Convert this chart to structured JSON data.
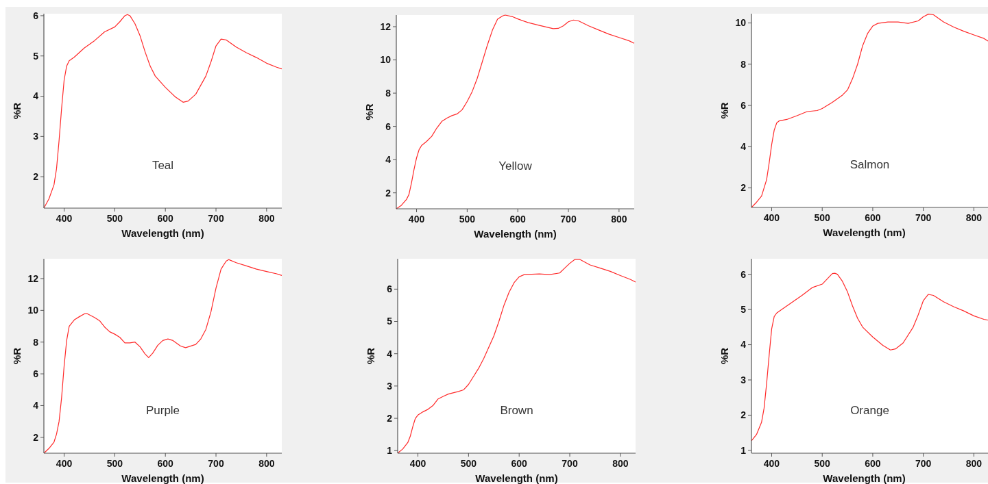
{
  "chart_data": [
    {
      "type": "line",
      "xlabel": "Wavelength (nm)",
      "ylabel": "%R",
      "annotations": [
        "Teal"
      ],
      "xlim": [
        360,
        830
      ],
      "ylim": [
        1.22,
        6.05
      ],
      "xticks": [
        400,
        500,
        600,
        700,
        800
      ],
      "yticks": [
        2,
        3,
        4,
        5,
        6
      ],
      "grid": false,
      "series": [
        {
          "color": "#ff2a2a",
          "x": [
            360,
            370,
            380,
            385,
            390,
            395,
            400,
            405,
            410,
            420,
            440,
            460,
            480,
            500,
            510,
            520,
            525,
            530,
            540,
            550,
            560,
            570,
            580,
            600,
            620,
            635,
            645,
            660,
            680,
            690,
            700,
            710,
            720,
            740,
            760,
            780,
            800,
            820,
            830
          ],
          "values": [
            1.22,
            1.45,
            1.8,
            2.2,
            2.9,
            3.7,
            4.4,
            4.75,
            4.88,
            4.97,
            5.2,
            5.38,
            5.6,
            5.72,
            5.85,
            6.0,
            6.03,
            6.0,
            5.8,
            5.5,
            5.1,
            4.75,
            4.5,
            4.22,
            3.98,
            3.85,
            3.88,
            4.05,
            4.5,
            4.85,
            5.25,
            5.42,
            5.4,
            5.22,
            5.08,
            4.96,
            4.82,
            4.72,
            4.68
          ]
        }
      ]
    },
    {
      "type": "line",
      "xlabel": "Wavelength (nm)",
      "ylabel": "%R",
      "annotations": [
        "Yellow"
      ],
      "xlim": [
        360,
        830
      ],
      "ylim": [
        1.04,
        12.7
      ],
      "xticks": [
        400,
        500,
        600,
        700,
        800
      ],
      "yticks": [
        2,
        4,
        6,
        8,
        10,
        12
      ],
      "grid": false,
      "series": [
        {
          "color": "#ff2a2a",
          "x": [
            360,
            370,
            380,
            385,
            390,
            395,
            400,
            405,
            410,
            420,
            430,
            440,
            450,
            460,
            470,
            480,
            490,
            500,
            510,
            520,
            530,
            540,
            550,
            560,
            570,
            575,
            590,
            600,
            620,
            640,
            660,
            670,
            680,
            690,
            700,
            710,
            720,
            740,
            760,
            780,
            800,
            820,
            830
          ],
          "values": [
            1.04,
            1.25,
            1.6,
            1.9,
            2.6,
            3.4,
            4.1,
            4.6,
            4.85,
            5.1,
            5.4,
            5.9,
            6.3,
            6.5,
            6.65,
            6.75,
            7.0,
            7.5,
            8.1,
            8.9,
            9.9,
            10.9,
            11.8,
            12.45,
            12.65,
            12.7,
            12.6,
            12.47,
            12.25,
            12.1,
            11.95,
            11.88,
            11.9,
            12.05,
            12.3,
            12.4,
            12.35,
            12.05,
            11.8,
            11.55,
            11.35,
            11.15,
            11.0
          ]
        }
      ]
    },
    {
      "type": "line",
      "xlabel": "Wavelength (nm)",
      "ylabel": "%R",
      "annotations": [
        "Salmon"
      ],
      "xlim": [
        360,
        828
      ],
      "ylim": [
        1.05,
        10.45
      ],
      "xticks": [
        400,
        500,
        600,
        700,
        800
      ],
      "yticks": [
        2,
        4,
        6,
        8,
        10
      ],
      "grid": false,
      "series": [
        {
          "color": "#ff2a2a",
          "x": [
            360,
            370,
            380,
            390,
            395,
            400,
            405,
            410,
            415,
            430,
            450,
            470,
            490,
            500,
            520,
            540,
            550,
            560,
            570,
            580,
            590,
            600,
            610,
            630,
            650,
            670,
            690,
            700,
            710,
            720,
            740,
            760,
            780,
            800,
            820,
            828
          ],
          "values": [
            1.05,
            1.3,
            1.6,
            2.4,
            3.2,
            4.1,
            4.8,
            5.15,
            5.25,
            5.32,
            5.5,
            5.7,
            5.75,
            5.85,
            6.15,
            6.5,
            6.75,
            7.3,
            8.0,
            8.9,
            9.5,
            9.85,
            9.98,
            10.05,
            10.05,
            9.98,
            10.1,
            10.3,
            10.43,
            10.4,
            10.05,
            9.8,
            9.6,
            9.42,
            9.25,
            9.12
          ]
        }
      ]
    },
    {
      "type": "line",
      "xlabel": "Wavelength (nm)",
      "ylabel": "%R",
      "annotations": [
        "Purple"
      ],
      "xlim": [
        360,
        830
      ],
      "ylim": [
        1.0,
        13.25
      ],
      "xticks": [
        400,
        500,
        600,
        700,
        800
      ],
      "yticks": [
        2,
        4,
        6,
        8,
        10,
        12
      ],
      "grid": false,
      "series": [
        {
          "color": "#ff2a2a",
          "x": [
            360,
            370,
            380,
            385,
            390,
            395,
            400,
            405,
            410,
            420,
            430,
            440,
            445,
            460,
            470,
            480,
            490,
            500,
            510,
            520,
            530,
            540,
            550,
            560,
            567,
            575,
            585,
            595,
            605,
            615,
            630,
            640,
            660,
            670,
            680,
            690,
            700,
            710,
            720,
            725,
            740,
            760,
            780,
            800,
            820,
            830
          ],
          "values": [
            1.0,
            1.3,
            1.7,
            2.2,
            3.0,
            4.5,
            6.5,
            8.1,
            9.0,
            9.4,
            9.6,
            9.78,
            9.8,
            9.55,
            9.35,
            8.95,
            8.65,
            8.5,
            8.3,
            7.95,
            7.95,
            8.0,
            7.7,
            7.25,
            7.02,
            7.3,
            7.8,
            8.1,
            8.2,
            8.1,
            7.75,
            7.65,
            7.85,
            8.2,
            8.8,
            9.9,
            11.4,
            12.6,
            13.1,
            13.2,
            13.0,
            12.8,
            12.6,
            12.45,
            12.3,
            12.2
          ]
        }
      ]
    },
    {
      "type": "line",
      "xlabel": "Wavelength (nm)",
      "ylabel": "%R",
      "annotations": [
        "Brown"
      ],
      "xlim": [
        360,
        830
      ],
      "ylim": [
        0.92,
        6.94
      ],
      "xticks": [
        400,
        500,
        600,
        700,
        800
      ],
      "yticks": [
        1,
        2,
        3,
        4,
        5,
        6
      ],
      "grid": false,
      "series": [
        {
          "color": "#ff2a2a",
          "x": [
            360,
            370,
            380,
            385,
            390,
            395,
            400,
            410,
            420,
            430,
            440,
            450,
            460,
            480,
            490,
            500,
            510,
            520,
            530,
            540,
            550,
            560,
            570,
            580,
            590,
            600,
            610,
            640,
            660,
            680,
            690,
            700,
            710,
            720,
            740,
            760,
            780,
            800,
            820,
            830
          ],
          "values": [
            0.92,
            1.05,
            1.25,
            1.45,
            1.75,
            2.0,
            2.1,
            2.2,
            2.28,
            2.4,
            2.6,
            2.68,
            2.75,
            2.83,
            2.88,
            3.05,
            3.3,
            3.55,
            3.85,
            4.2,
            4.55,
            5.0,
            5.5,
            5.9,
            6.2,
            6.38,
            6.45,
            6.47,
            6.45,
            6.5,
            6.65,
            6.8,
            6.92,
            6.92,
            6.75,
            6.65,
            6.55,
            6.42,
            6.3,
            6.22
          ]
        }
      ]
    },
    {
      "type": "line",
      "xlabel": "Wavelength (nm)",
      "ylabel": "%R",
      "annotations": [
        "Orange"
      ],
      "xlim": [
        360,
        828
      ],
      "ylim": [
        0.92,
        6.44
      ],
      "xticks": [
        400,
        500,
        600,
        700,
        800
      ],
      "yticks": [
        1,
        2,
        3,
        4,
        5,
        6
      ],
      "grid": false,
      "series": [
        {
          "color": "#ff2a2a",
          "x": [
            360,
            370,
            380,
            385,
            390,
            395,
            400,
            405,
            410,
            420,
            440,
            460,
            480,
            500,
            510,
            520,
            525,
            530,
            540,
            550,
            560,
            570,
            580,
            600,
            620,
            635,
            645,
            660,
            680,
            690,
            700,
            710,
            720,
            740,
            760,
            780,
            800,
            820,
            828
          ],
          "values": [
            1.27,
            1.45,
            1.8,
            2.2,
            2.9,
            3.7,
            4.45,
            4.8,
            4.9,
            5.0,
            5.2,
            5.4,
            5.62,
            5.72,
            5.87,
            6.02,
            6.03,
            6.0,
            5.8,
            5.5,
            5.1,
            4.75,
            4.5,
            4.22,
            3.98,
            3.85,
            3.88,
            4.05,
            4.5,
            4.85,
            5.25,
            5.43,
            5.4,
            5.22,
            5.08,
            4.96,
            4.82,
            4.72,
            4.7
          ]
        }
      ]
    }
  ]
}
